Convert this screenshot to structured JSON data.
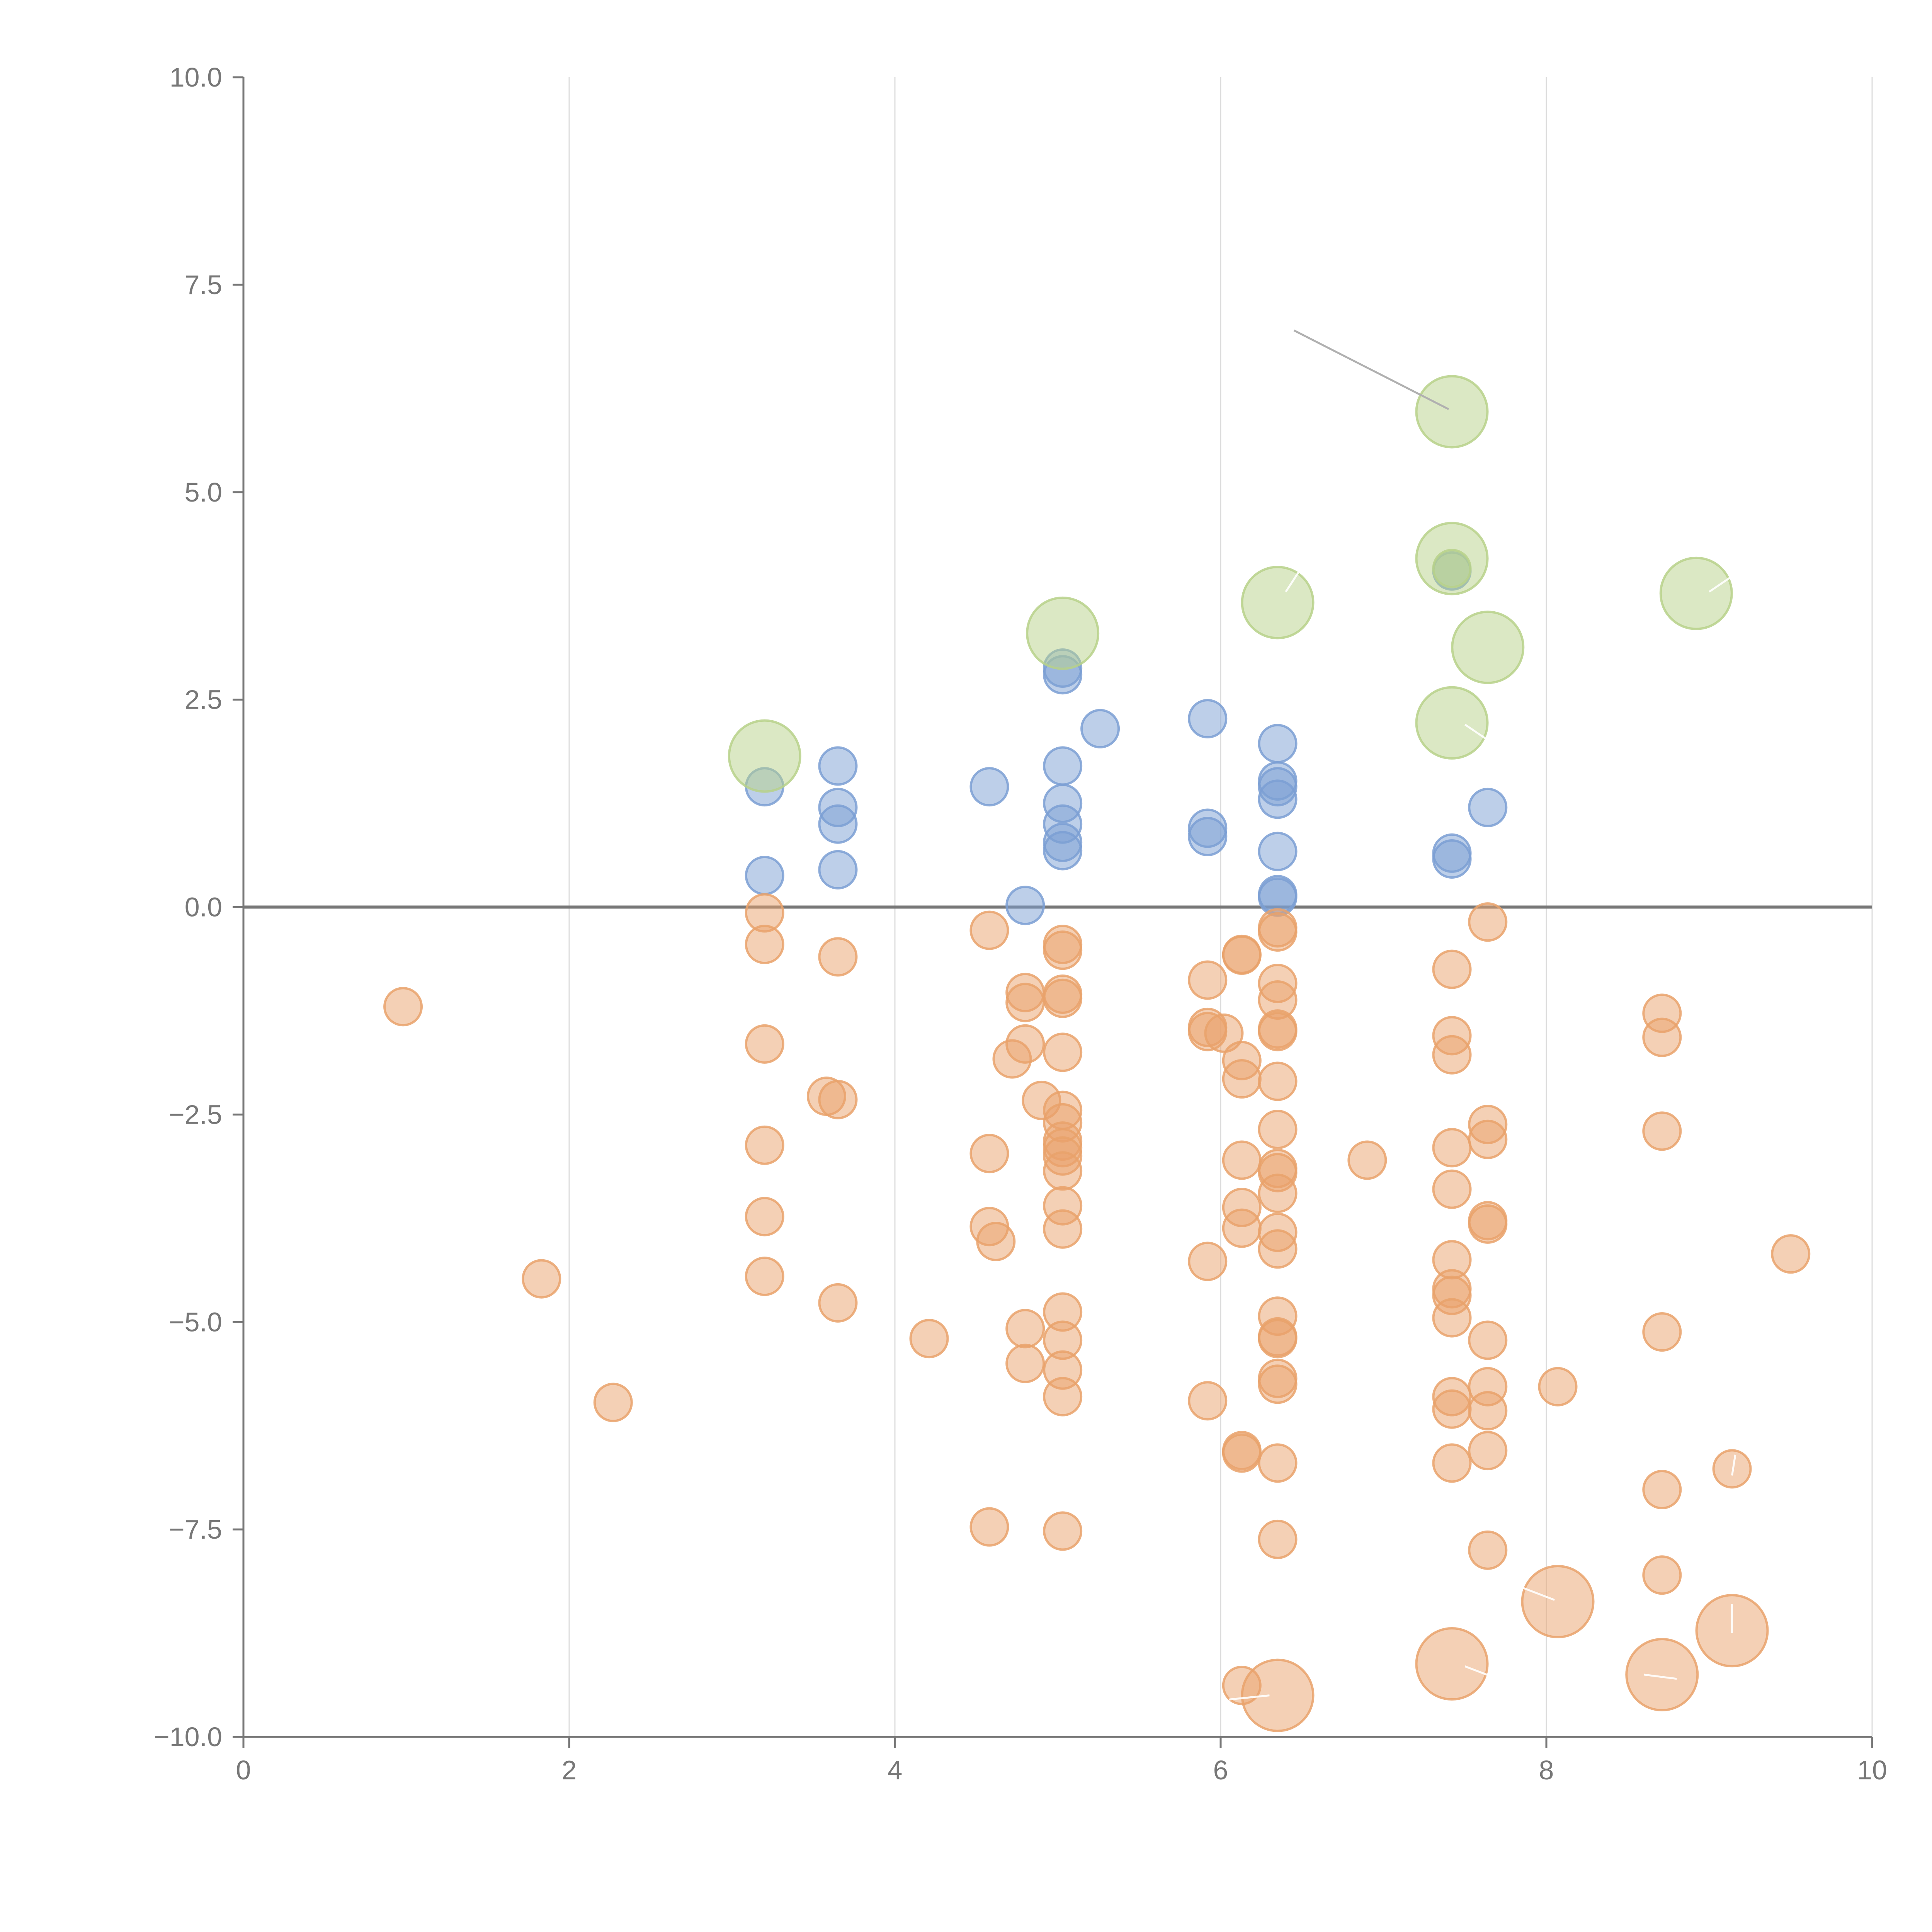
{
  "chart_data": {
    "type": "scatter",
    "title": "",
    "xlabel": "",
    "ylabel": "",
    "xlim": [
      0,
      10
    ],
    "ylim": [
      -10,
      10
    ],
    "x_ticks": [
      "0",
      "2",
      "4",
      "6",
      "8",
      "10"
    ],
    "y_ticks": [
      "10.0",
      "7.5",
      "5.0",
      "2.5",
      "0.0",
      "−2.5",
      "−5.0",
      "−7.5",
      "−10.0"
    ],
    "x_tick_values": [
      0,
      2,
      4,
      6,
      8,
      10
    ],
    "y_tick_values": [
      10,
      7.5,
      5,
      2.5,
      0,
      -2.5,
      -5,
      -7.5,
      -10
    ],
    "grid": "vertical",
    "reference_line_y": 0,
    "colors": {
      "blue": "#7b9fd4",
      "orange": "#e9a26b",
      "green": "#b7d18a",
      "axis": "#777777",
      "grid": "#dcdcdc",
      "leader": "#b0b0b0"
    },
    "series": [
      {
        "color_key": "blue",
        "size": "small",
        "points": [
          [
            3.2,
            1.45
          ],
          [
            3.2,
            0.38
          ],
          [
            3.65,
            1.7
          ],
          [
            3.65,
            1.2
          ],
          [
            3.65,
            1.0
          ],
          [
            3.65,
            0.45
          ],
          [
            4.58,
            1.45
          ],
          [
            4.8,
            0.02
          ],
          [
            5.03,
            2.88
          ],
          [
            5.03,
            2.8
          ],
          [
            5.03,
            1.7
          ],
          [
            5.03,
            1.25
          ],
          [
            5.03,
            1.0
          ],
          [
            5.03,
            0.78
          ],
          [
            5.03,
            0.68
          ],
          [
            5.26,
            2.15
          ],
          [
            5.92,
            2.27
          ],
          [
            5.92,
            0.95
          ],
          [
            5.92,
            0.85
          ],
          [
            6.35,
            1.97
          ],
          [
            6.35,
            1.52
          ],
          [
            6.35,
            1.45
          ],
          [
            6.35,
            1.3
          ],
          [
            6.35,
            0.67
          ],
          [
            6.35,
            0.15
          ],
          [
            6.35,
            0.12
          ],
          [
            7.42,
            0.65
          ],
          [
            7.42,
            0.58
          ],
          [
            7.42,
            4.05
          ],
          [
            7.64,
            1.2
          ]
        ]
      },
      {
        "color_key": "orange",
        "size": "small",
        "points": [
          [
            0.98,
            -1.2
          ],
          [
            1.83,
            -4.48
          ],
          [
            2.27,
            -5.97
          ],
          [
            3.2,
            -0.07
          ],
          [
            3.2,
            -0.45
          ],
          [
            3.2,
            -1.65
          ],
          [
            3.2,
            -2.87
          ],
          [
            3.2,
            -3.73
          ],
          [
            3.2,
            -4.45
          ],
          [
            3.58,
            -2.28
          ],
          [
            3.65,
            -2.32
          ],
          [
            3.65,
            -0.6
          ],
          [
            3.65,
            -4.77
          ],
          [
            4.21,
            -5.2
          ],
          [
            4.58,
            -0.28
          ],
          [
            4.58,
            -2.97
          ],
          [
            4.58,
            -3.85
          ],
          [
            4.58,
            -7.47
          ],
          [
            4.62,
            -4.03
          ],
          [
            4.72,
            -1.83
          ],
          [
            4.8,
            -1.03
          ],
          [
            4.8,
            -1.15
          ],
          [
            4.8,
            -1.65
          ],
          [
            4.8,
            -5.08
          ],
          [
            4.8,
            -5.5
          ],
          [
            4.9,
            -2.33
          ],
          [
            5.03,
            -0.45
          ],
          [
            5.03,
            -0.52
          ],
          [
            5.03,
            -1.05
          ],
          [
            5.03,
            -1.1
          ],
          [
            5.03,
            -1.75
          ],
          [
            5.03,
            -2.45
          ],
          [
            5.03,
            -2.6
          ],
          [
            5.03,
            -2.82
          ],
          [
            5.03,
            -2.9
          ],
          [
            5.03,
            -3.0
          ],
          [
            5.03,
            -3.18
          ],
          [
            5.03,
            -3.6
          ],
          [
            5.03,
            -3.88
          ],
          [
            5.03,
            -4.88
          ],
          [
            5.03,
            -5.22
          ],
          [
            5.03,
            -5.58
          ],
          [
            5.03,
            -5.9
          ],
          [
            5.03,
            -7.52
          ],
          [
            5.92,
            -0.88
          ],
          [
            5.92,
            -1.45
          ],
          [
            5.92,
            -1.5
          ],
          [
            5.92,
            -4.27
          ],
          [
            5.92,
            -5.95
          ],
          [
            6.02,
            -1.52
          ],
          [
            6.13,
            -0.57
          ],
          [
            6.13,
            -0.58
          ],
          [
            6.13,
            -1.85
          ],
          [
            6.13,
            -2.07
          ],
          [
            6.13,
            -3.05
          ],
          [
            6.13,
            -3.62
          ],
          [
            6.13,
            -3.87
          ],
          [
            6.13,
            -6.55
          ],
          [
            6.13,
            -6.58
          ],
          [
            6.13,
            -9.38
          ],
          [
            6.35,
            -0.25
          ],
          [
            6.35,
            -0.3
          ],
          [
            6.35,
            -0.92
          ],
          [
            6.35,
            -1.12
          ],
          [
            6.35,
            -1.47
          ],
          [
            6.35,
            -1.5
          ],
          [
            6.35,
            -2.1
          ],
          [
            6.35,
            -2.68
          ],
          [
            6.35,
            -3.15
          ],
          [
            6.35,
            -3.2
          ],
          [
            6.35,
            -3.45
          ],
          [
            6.35,
            -3.92
          ],
          [
            6.35,
            -4.12
          ],
          [
            6.35,
            -4.93
          ],
          [
            6.35,
            -5.18
          ],
          [
            6.35,
            -5.2
          ],
          [
            6.35,
            -5.68
          ],
          [
            6.35,
            -5.75
          ],
          [
            6.35,
            -6.7
          ],
          [
            6.35,
            -7.62
          ],
          [
            6.9,
            -3.05
          ],
          [
            7.42,
            -0.75
          ],
          [
            7.42,
            -1.55
          ],
          [
            7.42,
            -1.78
          ],
          [
            7.42,
            -2.9
          ],
          [
            7.42,
            -3.4
          ],
          [
            7.42,
            -4.25
          ],
          [
            7.42,
            -4.6
          ],
          [
            7.42,
            -4.68
          ],
          [
            7.42,
            -4.95
          ],
          [
            7.42,
            -5.9
          ],
          [
            7.42,
            -6.05
          ],
          [
            7.42,
            -6.7
          ],
          [
            7.64,
            -0.18
          ],
          [
            7.64,
            -2.62
          ],
          [
            7.64,
            -2.8
          ],
          [
            7.64,
            -3.78
          ],
          [
            7.64,
            -3.82
          ],
          [
            7.64,
            -5.22
          ],
          [
            7.64,
            -5.78
          ],
          [
            7.64,
            -6.07
          ],
          [
            7.64,
            -6.55
          ],
          [
            7.64,
            -7.75
          ],
          [
            8.07,
            -5.78
          ],
          [
            8.71,
            -1.28
          ],
          [
            8.71,
            -1.57
          ],
          [
            8.71,
            -2.7
          ],
          [
            8.71,
            -5.12
          ],
          [
            8.71,
            -7.02
          ],
          [
            8.71,
            -8.05
          ],
          [
            9.14,
            -6.77
          ],
          [
            9.5,
            -4.18
          ]
        ]
      },
      {
        "color_key": "orange",
        "size": "large",
        "points": [
          [
            6.35,
            -9.5
          ],
          [
            7.42,
            -9.12
          ],
          [
            8.07,
            -8.37
          ],
          [
            8.71,
            -9.25
          ],
          [
            9.14,
            -8.72
          ]
        ]
      },
      {
        "color_key": "green",
        "size": "large",
        "points": [
          [
            3.2,
            1.82
          ],
          [
            5.03,
            3.3
          ],
          [
            6.35,
            3.67
          ],
          [
            7.42,
            5.97
          ],
          [
            7.42,
            4.2
          ],
          [
            7.42,
            2.22
          ],
          [
            7.64,
            3.13
          ],
          [
            8.92,
            3.78
          ]
        ]
      },
      {
        "color_key": "green",
        "size": "small",
        "points": [
          [
            7.42,
            4.08
          ]
        ]
      }
    ],
    "leader_lines": [
      {
        "from": [
          6.45,
          6.95
        ],
        "to": [
          7.4,
          6.0
        ],
        "color_key": "leader"
      },
      {
        "from": [
          6.4,
          3.8
        ],
        "to": [
          6.5,
          4.1
        ],
        "color_key": "white"
      },
      {
        "from": [
          7.5,
          2.2
        ],
        "to": [
          7.65,
          2.0
        ],
        "color_key": "white"
      },
      {
        "from": [
          9.0,
          3.8
        ],
        "to": [
          9.15,
          4.0
        ],
        "color_key": "white"
      },
      {
        "from": [
          7.5,
          -9.15
        ],
        "to": [
          7.7,
          -9.3
        ],
        "color_key": "white"
      },
      {
        "from": [
          8.05,
          -8.35
        ],
        "to": [
          7.85,
          -8.2
        ],
        "color_key": "white"
      },
      {
        "from": [
          8.8,
          -9.3
        ],
        "to": [
          8.6,
          -9.25
        ],
        "color_key": "white"
      },
      {
        "from": [
          9.14,
          -8.75
        ],
        "to": [
          9.14,
          -8.4
        ],
        "color_key": "white"
      },
      {
        "from": [
          6.3,
          -9.5
        ],
        "to": [
          6.05,
          -9.55
        ],
        "color_key": "white"
      },
      {
        "from": [
          9.14,
          -6.85
        ],
        "to": [
          9.16,
          -6.6
        ],
        "color_key": "white"
      }
    ]
  }
}
